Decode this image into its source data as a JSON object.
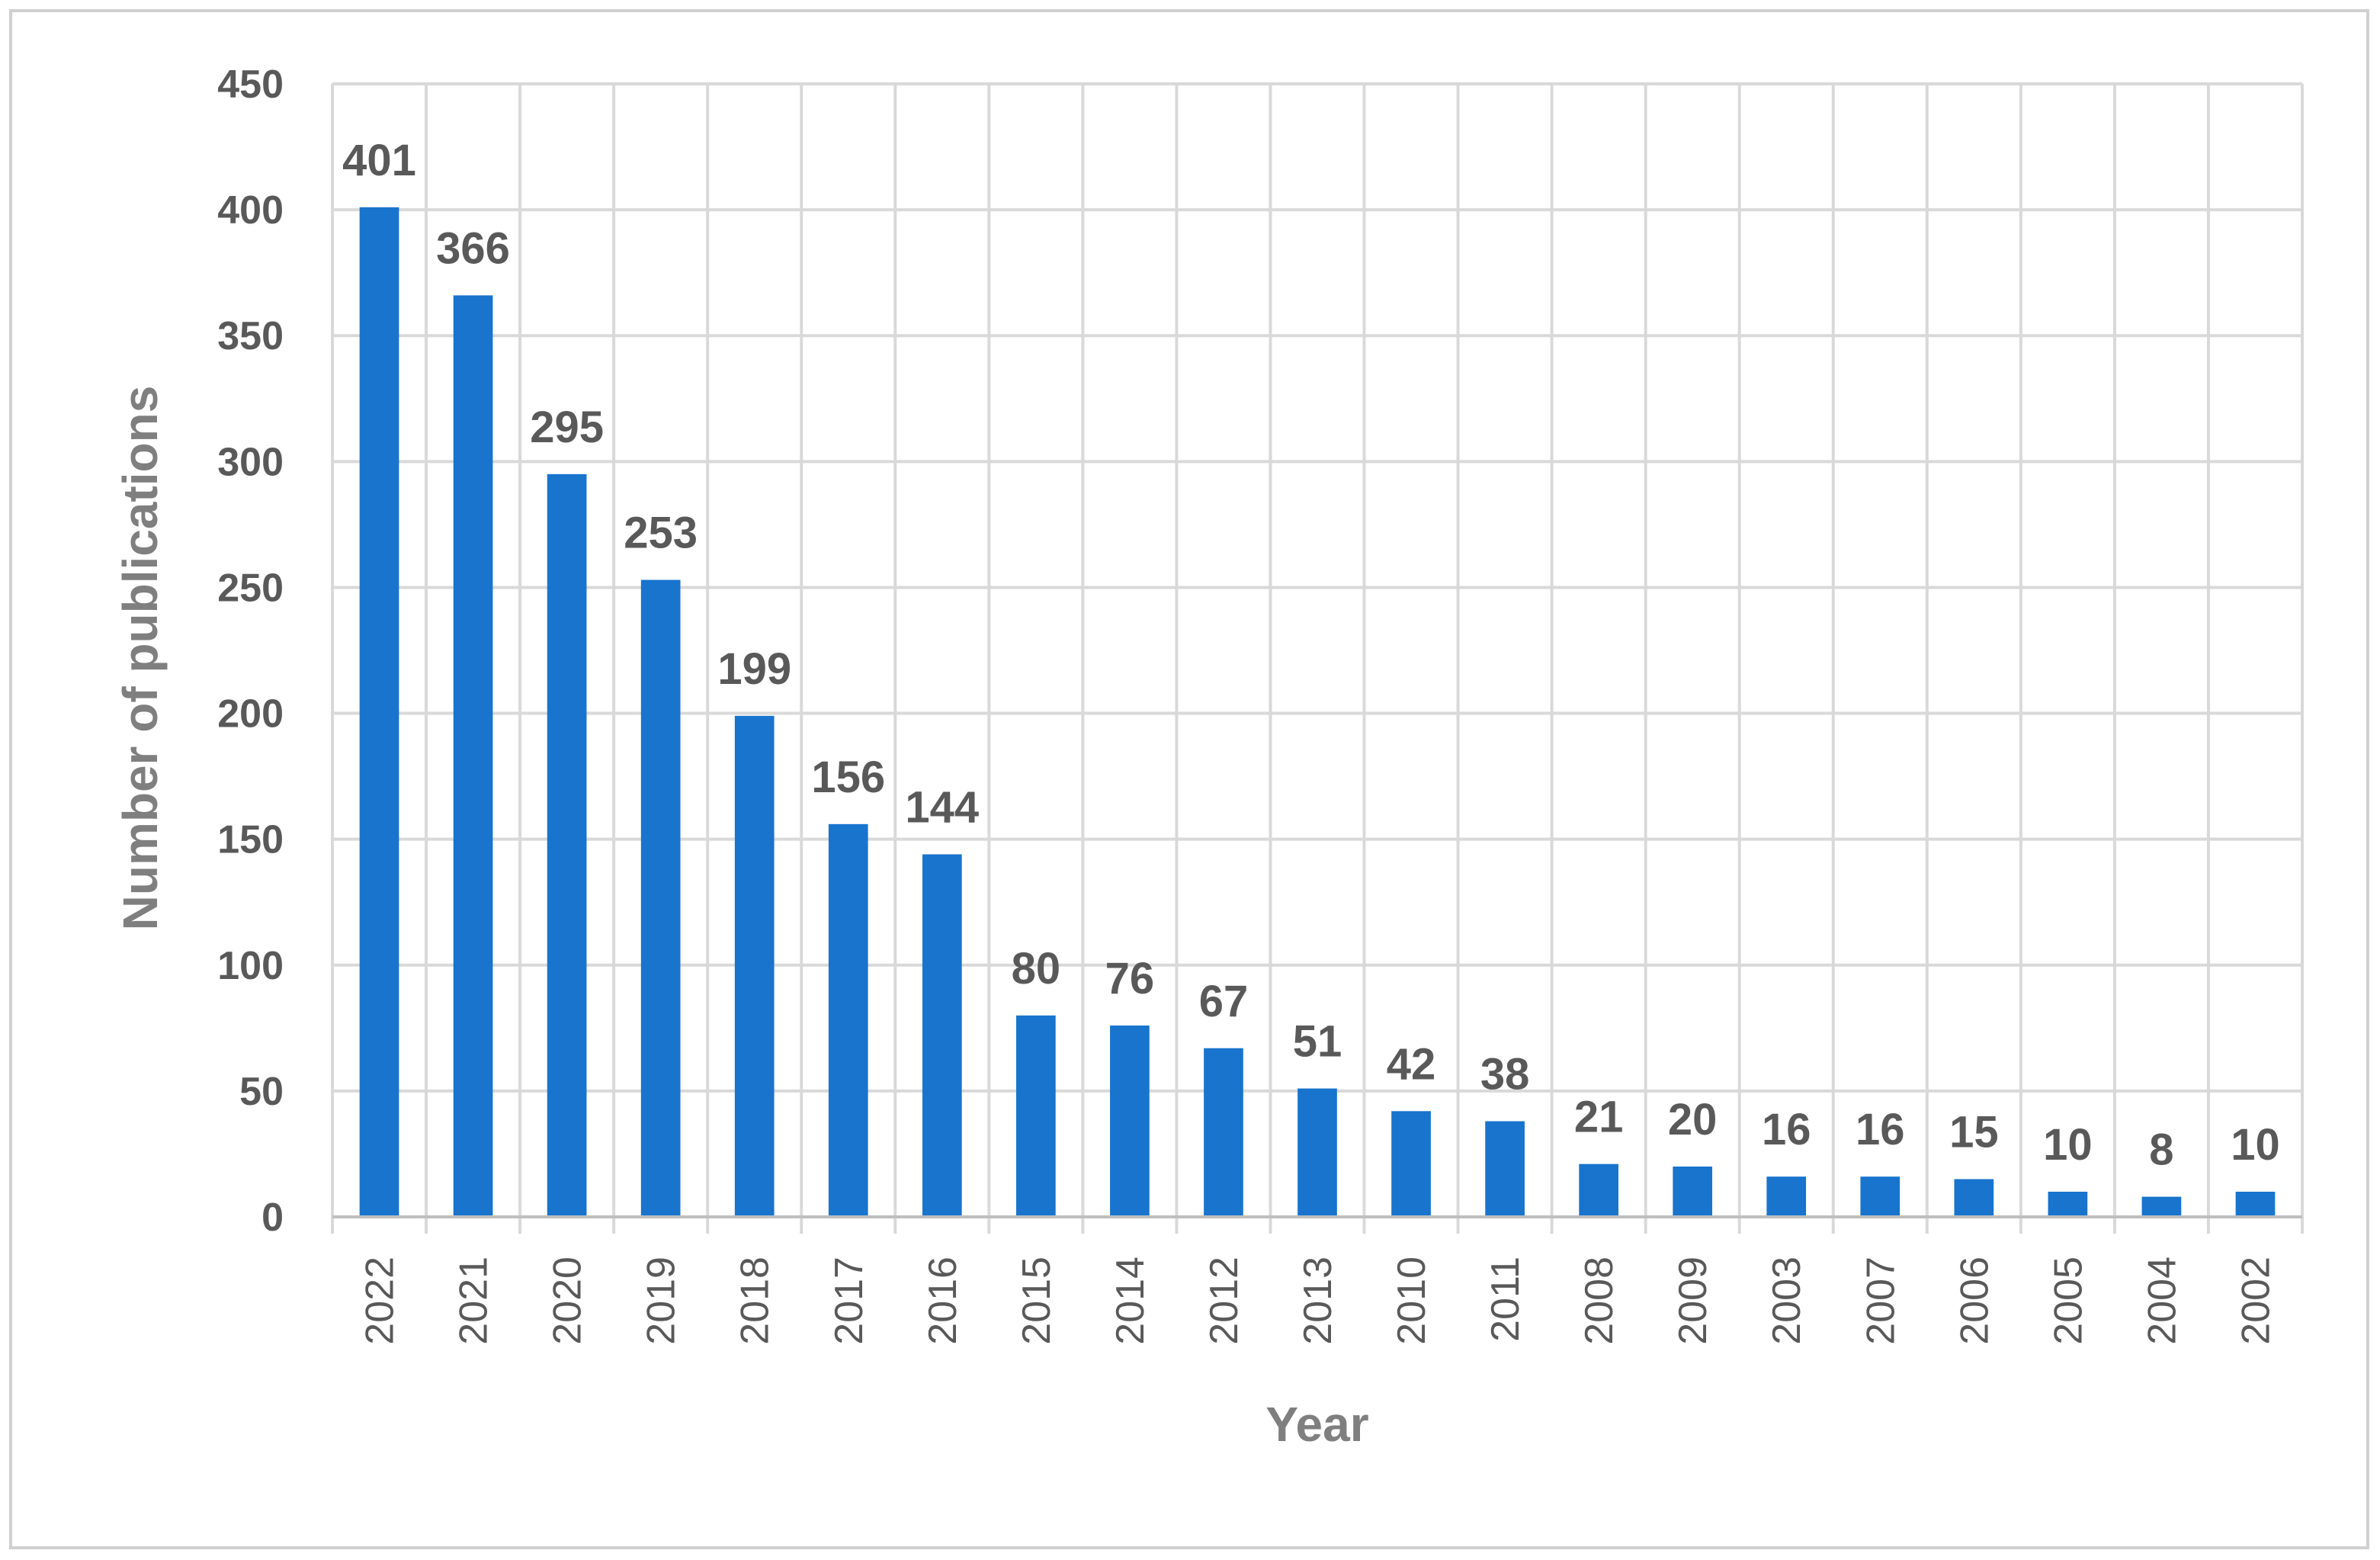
{
  "chart_data": {
    "type": "bar",
    "categories": [
      "2022",
      "2021",
      "2020",
      "2019",
      "2018",
      "2017",
      "2016",
      "2015",
      "2014",
      "2012",
      "2013",
      "2010",
      "2011",
      "2008",
      "2009",
      "2003",
      "2007",
      "2006",
      "2005",
      "2004",
      "2002"
    ],
    "values": [
      401,
      366,
      295,
      253,
      199,
      156,
      144,
      80,
      76,
      67,
      51,
      42,
      38,
      21,
      20,
      16,
      16,
      15,
      10,
      8,
      10
    ],
    "title": "",
    "xlabel": "Year",
    "ylabel": "Number of publications",
    "ylim": [
      0,
      450
    ],
    "yticks": [
      0,
      50,
      100,
      150,
      200,
      250,
      300,
      350,
      400,
      450
    ],
    "grid": true,
    "data_labels": true,
    "bar_color": "#1874CD",
    "grid_color": "#D9D9D9",
    "label_color": "#595959",
    "axis_title_color": "#7F7F7F"
  }
}
